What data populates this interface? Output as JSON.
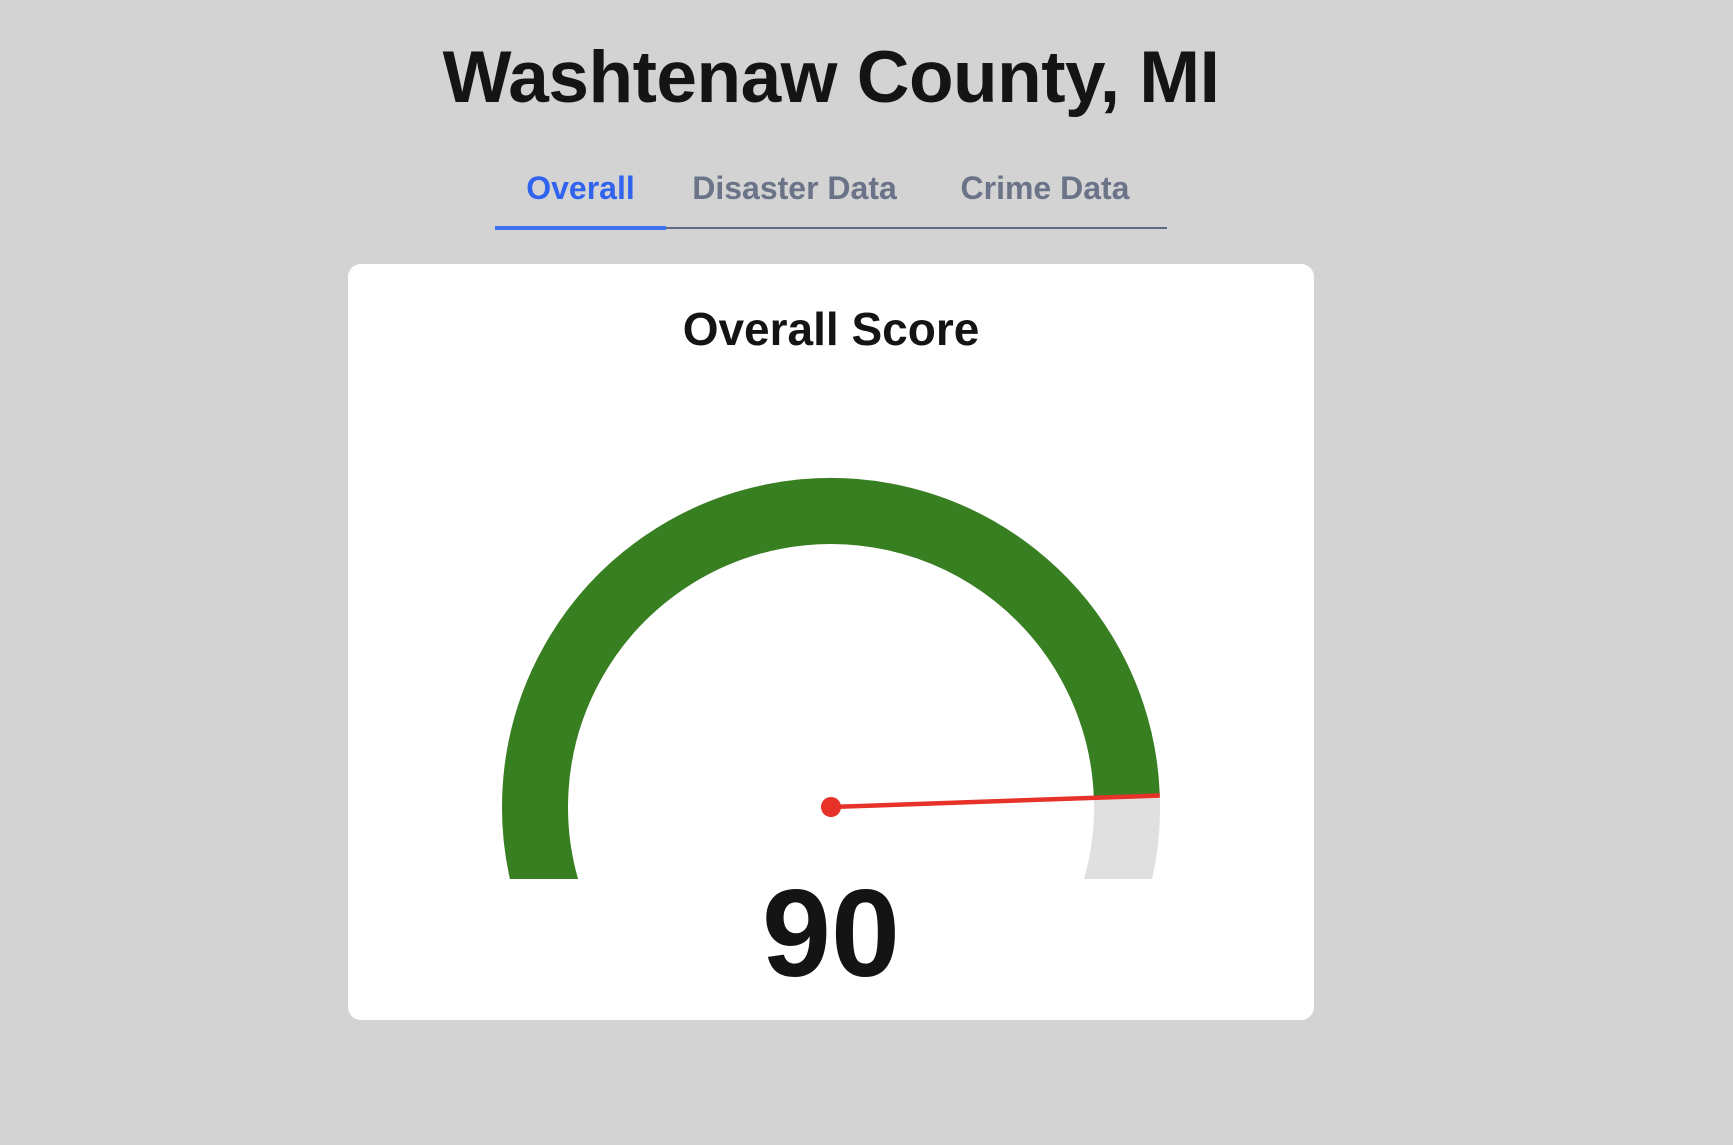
{
  "header": {
    "title": "Washtenaw County, MI"
  },
  "tabs": [
    {
      "label": "Overall",
      "active": true
    },
    {
      "label": "Disaster Data",
      "active": false
    },
    {
      "label": "Crime Data",
      "active": false
    }
  ],
  "score_card": {
    "title": "Overall Score",
    "value": "90",
    "score": 90,
    "max": 100
  },
  "colors": {
    "background": "#d3d3d3",
    "accent": "#2f63f0",
    "gauge_fill": "#387f22",
    "gauge_track": "#e0e0e0",
    "needle": "#e63228"
  }
}
